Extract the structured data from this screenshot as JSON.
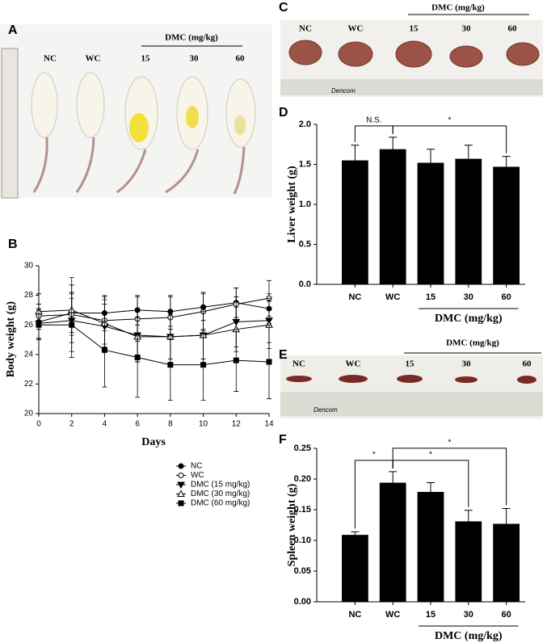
{
  "panel_labels": [
    "A",
    "B",
    "C",
    "D",
    "E",
    "F"
  ],
  "photos": [
    {
      "groups": [
        "NC",
        "WC",
        "15",
        "30",
        "60"
      ],
      "group_title": "DMC (mg/kg)"
    },
    {
      "groups": [
        "NC",
        "WC",
        "15",
        "30",
        "60"
      ],
      "group_title": "DMC (mg/kg)",
      "ruler_brand": "Dencom"
    },
    {
      "groups": [
        "NC",
        "WC",
        "15",
        "30",
        "60"
      ],
      "group_title": "DMC (mg/kg)",
      "ruler_brand": "Dencom"
    }
  ],
  "chart_data": [
    {
      "type": "line",
      "xlabel": "Days",
      "ylabel": "Body weight (g)",
      "x": [
        0,
        2,
        4,
        6,
        8,
        10,
        12,
        14
      ],
      "xlim": [
        0,
        14
      ],
      "xticks": [
        0,
        2,
        4,
        6,
        8,
        10,
        12,
        14
      ],
      "ylim": [
        20,
        30
      ],
      "yticks": [
        20,
        22,
        24,
        26,
        28,
        30
      ],
      "series": [
        {
          "name": "NC",
          "color": "#000000",
          "marker": "circle",
          "filled": true,
          "values": [
            26.2,
            26.8,
            26.8,
            27.0,
            26.9,
            27.2,
            27.5,
            27.1
          ],
          "errors": [
            1.2,
            1.3,
            1.2,
            1.0,
            1.0,
            0.9,
            1.0,
            1.0
          ]
        },
        {
          "name": "WC",
          "color": "#000000",
          "marker": "circle",
          "filled": false,
          "values": [
            26.6,
            26.7,
            26.3,
            26.4,
            26.5,
            26.9,
            27.4,
            27.8
          ],
          "errors": [
            1.5,
            2.5,
            1.6,
            1.5,
            1.5,
            1.3,
            1.1,
            1.2
          ]
        },
        {
          "name": "DMC (15 mg/kg)",
          "color": "#000000",
          "marker": "triangle-down",
          "filled": true,
          "values": [
            26.1,
            26.3,
            25.9,
            25.3,
            25.2,
            25.3,
            26.2,
            26.3
          ],
          "errors": [
            1.0,
            1.5,
            1.5,
            1.8,
            1.5,
            1.6,
            1.7,
            1.5
          ]
        },
        {
          "name": "DMC (30 mg/kg)",
          "color": "#000000",
          "marker": "triangle-up",
          "filled": false,
          "values": [
            26.9,
            27.0,
            26.1,
            25.2,
            25.2,
            25.3,
            25.7,
            26.0
          ],
          "errors": [
            1.2,
            1.7,
            1.6,
            1.7,
            1.8,
            2.0,
            1.5,
            1.6
          ]
        },
        {
          "name": "DMC (60 mg/kg)",
          "color": "#000000",
          "marker": "square",
          "filled": true,
          "values": [
            26.0,
            26.0,
            24.3,
            23.8,
            23.3,
            23.3,
            23.6,
            23.5
          ],
          "errors": [
            1.0,
            2.2,
            2.5,
            2.7,
            2.4,
            2.4,
            2.1,
            2.5
          ]
        }
      ]
    },
    {
      "type": "bar",
      "ylabel": "Liver weight (g)",
      "color": "#000000",
      "categories": [
        "NC",
        "WC",
        "15",
        "30",
        "60"
      ],
      "values": [
        1.55,
        1.69,
        1.52,
        1.57,
        1.47
      ],
      "errors": [
        0.19,
        0.15,
        0.17,
        0.17,
        0.13
      ],
      "ylim": [
        0,
        2.0
      ],
      "yticks": [
        {
          "value": 0,
          "label": "0.0"
        },
        0.5,
        {
          "value": 1,
          "label": "1.0"
        },
        1.5,
        {
          "value": 2,
          "label": "2.0"
        }
      ],
      "group_label": {
        "text": "DMC (mg/kg)",
        "from": 2,
        "to": 4
      },
      "brackets": [
        {
          "text": "N.S.",
          "from": 0,
          "to": 1
        },
        {
          "text": "*",
          "from": 1,
          "to": 4
        }
      ]
    },
    {
      "type": "bar",
      "ylabel": "Spleen weight (g)",
      "color": "#000000",
      "categories": [
        "NC",
        "WC",
        "15",
        "30",
        "60"
      ],
      "values": [
        0.109,
        0.194,
        0.179,
        0.131,
        0.127
      ],
      "errors": [
        0.005,
        0.018,
        0.015,
        0.018,
        0.025
      ],
      "ylim": [
        0,
        0.25
      ],
      "yticks": [
        {
          "value": 0,
          "label": "0.00"
        },
        0.05,
        {
          "value": 0.1,
          "label": "0.10"
        },
        0.15,
        {
          "value": 0.2,
          "label": "0.20"
        },
        0.25
      ],
      "group_label": {
        "text": "DMC (mg/kg)",
        "from": 2,
        "to": 4
      },
      "brackets": [
        {
          "text": "*",
          "from": 1,
          "to": 3
        },
        {
          "text": "*",
          "from": 0,
          "to": 1
        },
        {
          "text": "*",
          "from": 1,
          "to": 4
        }
      ]
    }
  ]
}
